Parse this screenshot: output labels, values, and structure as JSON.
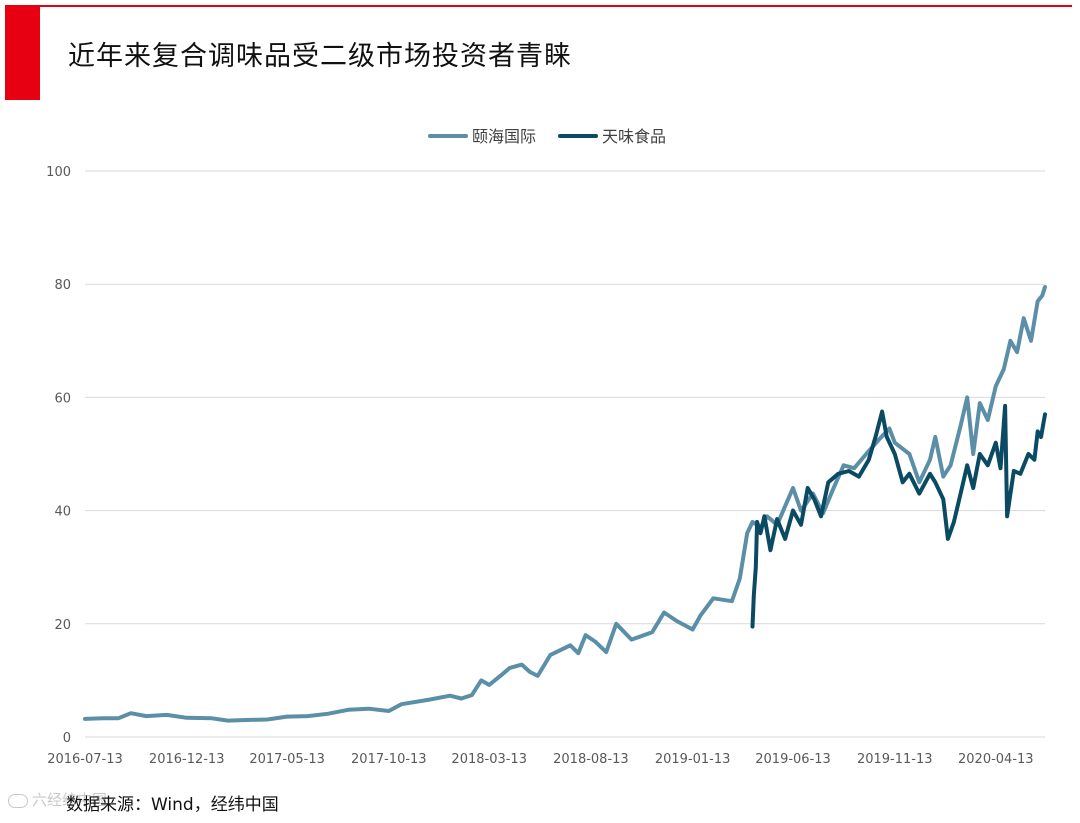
{
  "page": {
    "title": "近年来复合调味品受二级市场投资者青睐",
    "source": "数据来源：Wind，经纬中国",
    "watermark": "六经纬中国"
  },
  "colors": {
    "accent": "#e60012",
    "series_1": "#5b8fa8",
    "series_2": "#0b4a63",
    "grid": "#d9d9d9",
    "axis_text": "#595959"
  },
  "chart_data": {
    "type": "line",
    "xlabel": "",
    "ylabel": "",
    "ylim": [
      0,
      100
    ],
    "yticks": [
      0,
      20,
      40,
      60,
      80,
      100
    ],
    "xlim": [
      "2016-07-13",
      "2020-06-26"
    ],
    "xticks": [
      "2016-07-13",
      "2016-12-13",
      "2017-05-13",
      "2017-10-13",
      "2018-03-13",
      "2018-08-13",
      "2019-01-13",
      "2019-06-13",
      "2019-11-13",
      "2020-04-13"
    ],
    "grid": true,
    "legend": "top-center",
    "series": [
      {
        "name": "颐海国际",
        "color": "#5b8fa8",
        "points": [
          [
            "2016-07-13",
            3.2
          ],
          [
            "2016-08-10",
            3.3
          ],
          [
            "2016-09-01",
            3.3
          ],
          [
            "2016-09-20",
            4.2
          ],
          [
            "2016-10-13",
            3.7
          ],
          [
            "2016-11-13",
            3.9
          ],
          [
            "2016-12-13",
            3.4
          ],
          [
            "2017-01-20",
            3.3
          ],
          [
            "2017-02-13",
            2.9
          ],
          [
            "2017-03-13",
            3.0
          ],
          [
            "2017-04-13",
            3.1
          ],
          [
            "2017-05-13",
            3.6
          ],
          [
            "2017-06-13",
            3.7
          ],
          [
            "2017-07-13",
            4.1
          ],
          [
            "2017-08-13",
            4.8
          ],
          [
            "2017-09-13",
            5.0
          ],
          [
            "2017-10-13",
            4.6
          ],
          [
            "2017-11-01",
            5.8
          ],
          [
            "2017-12-13",
            6.6
          ],
          [
            "2018-01-13",
            7.3
          ],
          [
            "2018-01-30",
            6.8
          ],
          [
            "2018-02-15",
            7.4
          ],
          [
            "2018-03-01",
            10.0
          ],
          [
            "2018-03-13",
            9.2
          ],
          [
            "2018-04-01",
            11.0
          ],
          [
            "2018-04-13",
            12.2
          ],
          [
            "2018-05-01",
            12.8
          ],
          [
            "2018-05-13",
            11.5
          ],
          [
            "2018-05-25",
            10.8
          ],
          [
            "2018-06-13",
            14.5
          ],
          [
            "2018-07-13",
            16.2
          ],
          [
            "2018-07-25",
            14.8
          ],
          [
            "2018-08-05",
            18.0
          ],
          [
            "2018-08-20",
            16.8
          ],
          [
            "2018-09-05",
            15.0
          ],
          [
            "2018-09-20",
            20.0
          ],
          [
            "2018-10-13",
            17.2
          ],
          [
            "2018-11-13",
            18.5
          ],
          [
            "2018-12-01",
            22.0
          ],
          [
            "2018-12-20",
            20.5
          ],
          [
            "2019-01-13",
            19.0
          ],
          [
            "2019-01-25",
            21.5
          ],
          [
            "2019-02-13",
            24.5
          ],
          [
            "2019-03-13",
            24.0
          ],
          [
            "2019-03-25",
            28.0
          ],
          [
            "2019-04-05",
            36.0
          ],
          [
            "2019-04-13",
            38.0
          ],
          [
            "2019-04-25",
            37.0
          ],
          [
            "2019-05-05",
            39.0
          ],
          [
            "2019-05-20",
            37.5
          ],
          [
            "2019-06-13",
            44.0
          ],
          [
            "2019-06-25",
            40.0
          ],
          [
            "2019-07-13",
            43.0
          ],
          [
            "2019-07-28",
            39.5
          ],
          [
            "2019-08-13",
            44.0
          ],
          [
            "2019-08-28",
            48.0
          ],
          [
            "2019-09-13",
            47.5
          ],
          [
            "2019-10-01",
            50.0
          ],
          [
            "2019-10-20",
            52.5
          ],
          [
            "2019-11-05",
            54.5
          ],
          [
            "2019-11-13",
            52.0
          ],
          [
            "2019-12-05",
            50.0
          ],
          [
            "2019-12-20",
            45.0
          ],
          [
            "2020-01-05",
            49.0
          ],
          [
            "2020-01-13",
            53.0
          ],
          [
            "2020-01-25",
            46.0
          ],
          [
            "2020-02-05",
            48.0
          ],
          [
            "2020-02-20",
            55.0
          ],
          [
            "2020-03-01",
            60.0
          ],
          [
            "2020-03-10",
            50.0
          ],
          [
            "2020-03-20",
            59.0
          ],
          [
            "2020-04-01",
            56.0
          ],
          [
            "2020-04-13",
            62.0
          ],
          [
            "2020-04-25",
            65.0
          ],
          [
            "2020-05-05",
            70.0
          ],
          [
            "2020-05-15",
            68.0
          ],
          [
            "2020-05-25",
            74.0
          ],
          [
            "2020-06-05",
            70.0
          ],
          [
            "2020-06-15",
            77.0
          ],
          [
            "2020-06-22",
            78.0
          ],
          [
            "2020-06-26",
            79.5
          ]
        ]
      },
      {
        "name": "天味食品",
        "color": "#0b4a63",
        "points": [
          [
            "2019-04-13",
            19.5
          ],
          [
            "2019-04-15",
            25.0
          ],
          [
            "2019-04-18",
            30.0
          ],
          [
            "2019-04-20",
            38.0
          ],
          [
            "2019-04-25",
            36.0
          ],
          [
            "2019-05-01",
            39.0
          ],
          [
            "2019-05-10",
            33.0
          ],
          [
            "2019-05-20",
            38.5
          ],
          [
            "2019-06-01",
            35.0
          ],
          [
            "2019-06-13",
            40.0
          ],
          [
            "2019-06-25",
            37.5
          ],
          [
            "2019-07-05",
            44.0
          ],
          [
            "2019-07-15",
            42.0
          ],
          [
            "2019-07-25",
            39.0
          ],
          [
            "2019-08-05",
            45.0
          ],
          [
            "2019-08-20",
            46.5
          ],
          [
            "2019-09-05",
            47.0
          ],
          [
            "2019-09-20",
            46.0
          ],
          [
            "2019-10-05",
            49.0
          ],
          [
            "2019-10-15",
            53.0
          ],
          [
            "2019-10-25",
            57.5
          ],
          [
            "2019-11-01",
            53.0
          ],
          [
            "2019-11-13",
            50.0
          ],
          [
            "2019-11-25",
            45.0
          ],
          [
            "2019-12-05",
            46.5
          ],
          [
            "2019-12-20",
            43.0
          ],
          [
            "2020-01-05",
            46.5
          ],
          [
            "2020-01-13",
            45.0
          ],
          [
            "2020-01-25",
            42.0
          ],
          [
            "2020-02-01",
            35.0
          ],
          [
            "2020-02-10",
            38.0
          ],
          [
            "2020-02-20",
            43.0
          ],
          [
            "2020-03-01",
            48.0
          ],
          [
            "2020-03-10",
            44.0
          ],
          [
            "2020-03-20",
            50.0
          ],
          [
            "2020-04-01",
            48.0
          ],
          [
            "2020-04-13",
            52.0
          ],
          [
            "2020-04-20",
            47.5
          ],
          [
            "2020-04-27",
            58.5
          ],
          [
            "2020-04-30",
            39.0
          ],
          [
            "2020-05-10",
            47.0
          ],
          [
            "2020-05-20",
            46.5
          ],
          [
            "2020-06-01",
            50.0
          ],
          [
            "2020-06-10",
            49.0
          ],
          [
            "2020-06-15",
            54.0
          ],
          [
            "2020-06-20",
            53.0
          ],
          [
            "2020-06-26",
            57.0
          ]
        ]
      }
    ]
  }
}
